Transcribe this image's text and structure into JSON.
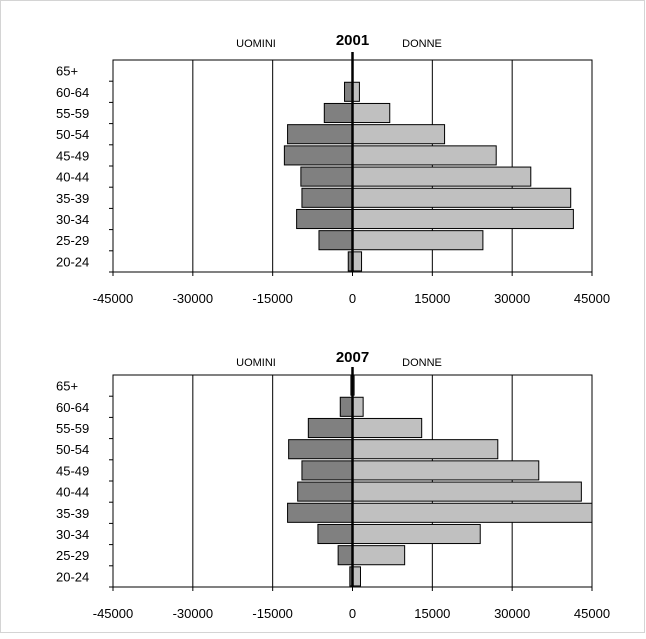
{
  "chart_data": [
    {
      "type": "bar",
      "orientation": "horizontal",
      "subtype": "population-pyramid",
      "title": "2001",
      "left_label": "UOMINI",
      "right_label": "DONNE",
      "categories": [
        "65+",
        "60-64",
        "55-59",
        "50-54",
        "45-49",
        "40-44",
        "35-39",
        "30-34",
        "25-29",
        "20-24"
      ],
      "series": [
        {
          "name": "UOMINI",
          "color": "#808080",
          "values": [
            0,
            -1500,
            -5300,
            -12200,
            -12800,
            -9700,
            -9500,
            -10500,
            -6300,
            -800
          ]
        },
        {
          "name": "DONNE",
          "color": "#c0c0c0",
          "values": [
            0,
            1300,
            7000,
            17300,
            27000,
            33500,
            41000,
            41500,
            24500,
            1700
          ]
        }
      ],
      "xlim": [
        -45000,
        45000
      ],
      "xticks": [
        "-45000",
        "-30000",
        "-15000",
        "0",
        "15000",
        "30000",
        "45000"
      ],
      "grid": "vertical"
    },
    {
      "type": "bar",
      "orientation": "horizontal",
      "subtype": "population-pyramid",
      "title": "2007",
      "left_label": "UOMINI",
      "right_label": "DONNE",
      "categories": [
        "65+",
        "60-64",
        "55-59",
        "50-54",
        "45-49",
        "40-44",
        "35-39",
        "30-34",
        "25-29",
        "20-24"
      ],
      "series": [
        {
          "name": "UOMINI",
          "color": "#808080",
          "values": [
            -300,
            -2300,
            -8300,
            -12000,
            -9500,
            -10300,
            -12200,
            -6500,
            -2700,
            -500
          ]
        },
        {
          "name": "DONNE",
          "color": "#c0c0c0",
          "values": [
            300,
            2000,
            13000,
            27300,
            35000,
            43000,
            45000,
            24000,
            9800,
            1500
          ]
        }
      ],
      "xlim": [
        -45000,
        45000
      ],
      "xticks": [
        "-45000",
        "-30000",
        "-15000",
        "0",
        "15000",
        "30000",
        "45000"
      ],
      "grid": "vertical"
    }
  ]
}
